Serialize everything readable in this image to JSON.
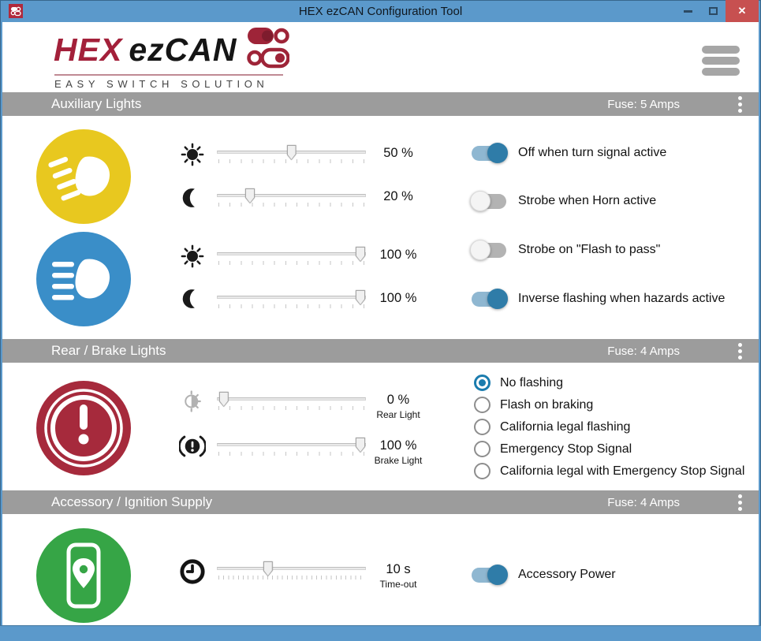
{
  "titlebar": {
    "title": "HEX ezCAN Configuration Tool",
    "close_glyph": "✕"
  },
  "header": {
    "brand_hex": "HEX",
    "brand_ezcan": "ezCAN",
    "tagline": "EASY SWITCH SOLUTION"
  },
  "sections": [
    {
      "title": "Auxiliary Lights",
      "fuse": "Fuse: 5 Amps"
    },
    {
      "title": "Rear / Brake Lights",
      "fuse": "Fuse: 4 Amps"
    },
    {
      "title": "Accessory / Ignition Supply",
      "fuse": "Fuse: 4 Amps"
    }
  ],
  "aux": {
    "sliders": [
      {
        "icon": "sun-icon",
        "value": "50 %",
        "percent": 50
      },
      {
        "icon": "moon-icon",
        "value": "20 %",
        "percent": 20
      },
      {
        "icon": "sun-icon",
        "value": "100 %",
        "percent": 100
      },
      {
        "icon": "moon-icon",
        "value": "100 %",
        "percent": 100
      }
    ],
    "toggles": [
      {
        "label": "Off when turn signal active",
        "on": true
      },
      {
        "label": "Strobe when Horn active",
        "on": false
      },
      {
        "label": "Strobe on \"Flash to pass\"",
        "on": false
      },
      {
        "label": "Inverse flashing when hazards active",
        "on": true
      }
    ]
  },
  "rear": {
    "sliders": [
      {
        "icon": "sun-dim-icon",
        "value": "0 %",
        "sublabel": "Rear Light",
        "percent": 1
      },
      {
        "icon": "brake-icon",
        "value": "100 %",
        "sublabel": "Brake Light",
        "percent": 100
      }
    ],
    "radios": [
      {
        "label": "No flashing",
        "selected": true
      },
      {
        "label": "Flash on braking",
        "selected": false
      },
      {
        "label": "California legal flashing",
        "selected": false
      },
      {
        "label": "Emergency Stop Signal",
        "selected": false
      },
      {
        "label": "California legal with Emergency Stop Signal",
        "selected": false
      }
    ]
  },
  "accessory": {
    "slider": {
      "icon": "clock-icon",
      "value": "10 s",
      "sublabel": "Time-out",
      "percent": 33
    },
    "toggle": {
      "label": "Accessory Power",
      "on": true
    }
  },
  "colors": {
    "titlebar_blue": "#5b99cb",
    "close_red": "#c75050",
    "section_gray": "#9c9c9c",
    "aux_yellow": "#e8c81f",
    "aux_blue": "#3a8ec8",
    "rear_red": "#a62a3c",
    "accessory_green": "#36a546",
    "toggle_on": "#2f7ca8",
    "radio_blue": "#1b7cae",
    "brand_red": "#a3203a"
  }
}
